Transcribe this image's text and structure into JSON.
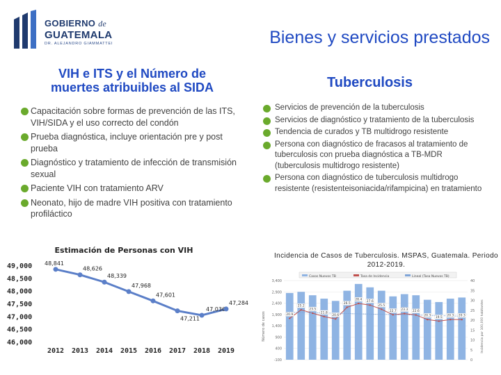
{
  "logo": {
    "line1": "GOBIERNO",
    "line1_italic": "de",
    "line2": "GUATEMALA",
    "line3": "DR. ALEJANDRO GIAMMATTEI"
  },
  "slide_title": "Bienes y servicios prestados",
  "left_heading": "VIH e ITS y el Número de muertes atribuibles al SIDA",
  "left_items": [
    "Capacitación sobre formas de prevención de las ITS, VIH/SIDA y el uso correcto del condón",
    "Prueba diagnóstica, incluye orientación pre y post prueba",
    "Diagnóstico y tratamiento de infección de transmisión sexual",
    "Paciente VIH con tratamiento ARV",
    "Neonato, hijo de madre VIH positiva con tratamiento profiláctico"
  ],
  "right_heading": "Tuberculosis",
  "right_items": [
    "Servicios de prevención de la tuberculosis",
    "Servicios de diagnóstico y tratamiento de la tuberculosis",
    "Tendencia de curados y TB multidrogo resistente",
    "Persona con diagnóstico de fracasos al tratamiento de tuberculosis con prueba diagnóstica a TB-MDR (tuberculosis multidrogo resistente)",
    "Persona con diagnóstico de tuberculosis multidrogo resistente (resistenteisoniacida/rifampicina) en tratamiento"
  ],
  "colors": {
    "accent": "#1f49c2",
    "bullet": "#6aaa2c",
    "line": "#5b7fc8",
    "bar": "#8fb4e3",
    "rate_line": "#c0504d",
    "trend": "#7fa4d8"
  },
  "chart_data": [
    {
      "type": "line",
      "title": "Estimación de Personas con VIH",
      "categories": [
        "2012",
        "2013",
        "2014",
        "2015",
        "2016",
        "2017",
        "2018",
        "2019"
      ],
      "values": [
        48841,
        48626,
        48339,
        47968,
        47601,
        47211,
        47036,
        47284
      ],
      "value_labels": [
        "48,841",
        "48,626",
        "48,339",
        "47,968",
        "47,601",
        "47,211",
        "47,036",
        "47,284"
      ],
      "ylim": [
        46000,
        49000
      ],
      "y_ticks": [
        "49,000",
        "48,500",
        "48,000",
        "47,500",
        "47,000",
        "46,500",
        "46,000"
      ],
      "grid": false
    },
    {
      "type": "bar",
      "title": "Incidencia de Casos de Tuberculosis. MSPAS, Guatemala. Periodo 2012-2019.",
      "legend": [
        "Casos Nuevos TB",
        "Tasa de Incidencia",
        "Lineal (Tasa Nuevos TB)"
      ],
      "legend_placement": "top",
      "ylabel": "Número de casos",
      "y2label": "Incidencia por 100,000 habitantes",
      "left_ticks": [
        "3,400",
        "2,900",
        "2,400",
        "1,900",
        "1,400",
        "900",
        "400",
        "-100"
      ],
      "right_ticks": [
        "40",
        "35",
        "30",
        "25",
        "20",
        "15",
        "10",
        "5",
        "0"
      ],
      "rate_labels": [
        "20.9",
        "25.2",
        "23.5",
        "21.8",
        "20.6",
        "26.5",
        "28.4",
        "27.6",
        "25.5",
        "22.7",
        "23.3",
        "22.6",
        "20.3",
        "19.5",
        "20.3",
        "20.3"
      ],
      "note": "16 annual bars with an incidence-rate line; exact year labels and bar values are not legible",
      "bar_values": [
        2850,
        2900,
        2750,
        2600,
        2500,
        2950,
        3250,
        3100,
        2950,
        2700,
        2800,
        2750,
        2550,
        2450,
        2600,
        2650
      ],
      "grid": true
    }
  ]
}
